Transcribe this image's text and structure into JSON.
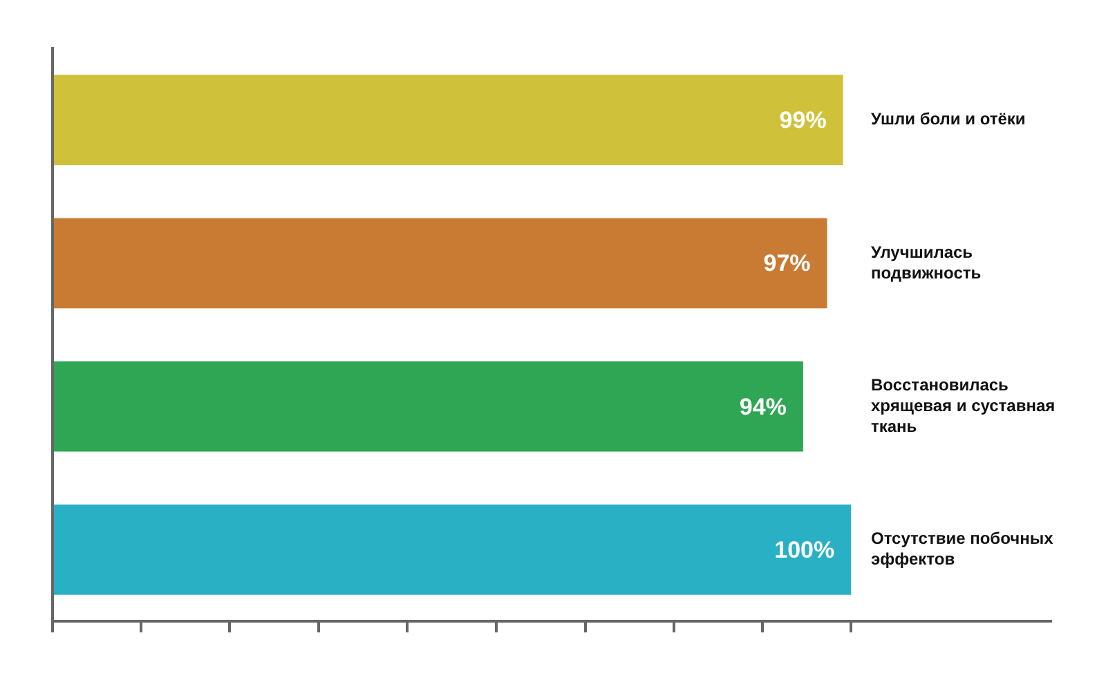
{
  "chart_data": {
    "type": "bar",
    "orientation": "horizontal",
    "categories": [
      "Ушли боли и отёки",
      "Улучшилась подвижность",
      "Восстановилась хрящевая и суставная ткань",
      "Отсутствие побочных эффектов"
    ],
    "values": [
      99,
      97,
      94,
      100
    ],
    "colors": [
      "#cfc13a",
      "#c97a33",
      "#2fa653",
      "#2ab0c4"
    ],
    "value_labels": [
      "99%",
      "97%",
      "94%",
      "100%"
    ],
    "xlim": [
      0,
      125
    ],
    "xticks": [
      {
        "value": 0,
        "label": null
      },
      {
        "value": 11.1,
        "label": null
      },
      {
        "value": 22.2,
        "label": null
      },
      {
        "value": 33.3,
        "label": null
      },
      {
        "value": 44.4,
        "label": null
      },
      {
        "value": 55.6,
        "label": null
      },
      {
        "value": 66.7,
        "label": null
      },
      {
        "value": 77.8,
        "label": null
      },
      {
        "value": 88.9,
        "label": null
      },
      {
        "value": 100,
        "label": null
      }
    ],
    "grid": false,
    "legend": false
  }
}
